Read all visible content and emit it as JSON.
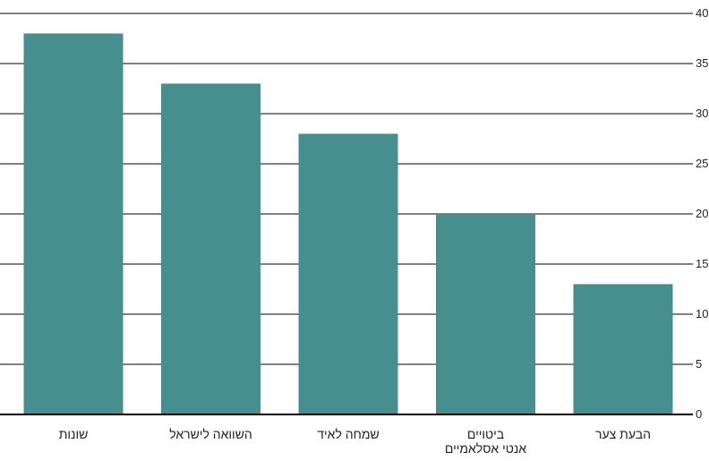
{
  "chart_data": {
    "type": "bar",
    "title": "",
    "xlabel": "",
    "ylabel": "",
    "categories": [
      [
        "שונות"
      ],
      [
        "השוואה לישראל"
      ],
      [
        "שמחה לאיד"
      ],
      [
        "ביטויים",
        "אנטי אסלאמיים"
      ],
      [
        "הבעת צער"
      ]
    ],
    "values": [
      38,
      33,
      28,
      20,
      13
    ],
    "ylim": [
      0,
      40
    ],
    "yticks": [
      "0",
      "5",
      "10",
      "15",
      "20",
      "25",
      "30",
      "35",
      "40"
    ],
    "y_axis_side": "right",
    "grid": true,
    "legend": "none",
    "colors": {
      "bar": "#478f8f",
      "grid": "#000000",
      "text": "#222222"
    }
  }
}
